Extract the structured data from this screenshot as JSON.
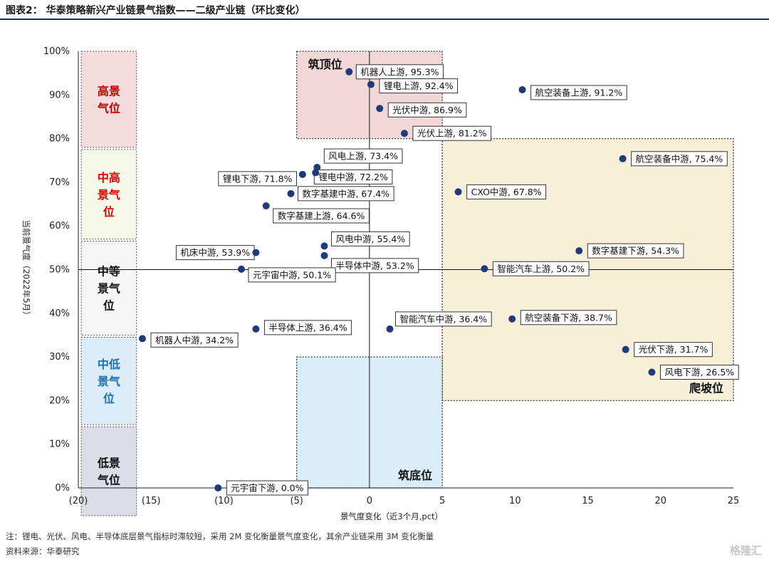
{
  "page": {
    "title": "图表2： 华泰策略新兴产业链景气指数——二级产业链（环比变化）",
    "note": "注：锂电、光伏、风电、半导体底层景气指标时滞较短，采用 2M 变化衡量景气度变化，其余产业链采用 3M 变化衡量",
    "source": "资料来源：华泰研究",
    "watermark": "格隆汇"
  },
  "chart_data": {
    "type": "scatter",
    "xlabel": "景气度变化（近3个月,pct）",
    "ylabel": "当前景气度（2022年5月）",
    "xlim": [
      -20,
      25
    ],
    "ylim": [
      0,
      100
    ],
    "x_ticks": [
      -20,
      -15,
      -10,
      -5,
      0,
      5,
      10,
      15,
      20,
      25
    ],
    "x_tick_labels": [
      "(20)",
      "(15)",
      "(10)",
      "(5)",
      "0",
      "5",
      "10",
      "15",
      "20",
      "25"
    ],
    "y_ticks": [
      0,
      10,
      20,
      30,
      40,
      50,
      60,
      70,
      80,
      90,
      100
    ],
    "y_tick_labels": [
      "0%",
      "10%",
      "20%",
      "30%",
      "40%",
      "50%",
      "60%",
      "70%",
      "80%",
      "90%",
      "100%"
    ],
    "reference_lines": {
      "x": 0,
      "y": 50
    },
    "point_color": "#1f3a7a",
    "tiers": [
      {
        "label": "高景气位",
        "range": [
          78,
          100
        ],
        "fill": "#f4dcdc",
        "text_color": "#c00000"
      },
      {
        "label": "中高景气位",
        "range": [
          57,
          77.5
        ],
        "fill": "#f7fae8",
        "text_color": "#e00000"
      },
      {
        "label": "中等景气位",
        "range": [
          35,
          56.5
        ],
        "fill": "#f6f6f6",
        "text_color": "#111111"
      },
      {
        "label": "中低景气位",
        "range": [
          14.5,
          34.5
        ],
        "fill": "#dcecf8",
        "text_color": "#1f6fb5"
      },
      {
        "label": "低景气位",
        "range": [
          -7,
          14
        ],
        "fill": "#dcdde8",
        "text_color": "#111111"
      }
    ],
    "zones": [
      {
        "label": "筑顶位",
        "x": [
          -5,
          5
        ],
        "y": [
          80,
          100
        ],
        "fill": "#f2d7d7"
      },
      {
        "label": "爬坡位",
        "x": [
          5,
          25
        ],
        "y": [
          20,
          80
        ],
        "fill": "#f7efd8"
      },
      {
        "label": "筑底位",
        "x": [
          -5,
          5
        ],
        "y": [
          0,
          30
        ],
        "fill": "#d9eef8"
      }
    ],
    "points": [
      {
        "name": "机器人上游",
        "x": -1.4,
        "y": 95.3,
        "label": "机器人上游, 95.3%"
      },
      {
        "name": "锂电上游",
        "x": 0.1,
        "y": 92.4,
        "label": "锂电上游, 92.4%"
      },
      {
        "name": "航空装备上游",
        "x": 10.5,
        "y": 91.2,
        "label": "航空装备上游, 91.2%"
      },
      {
        "name": "光伏中游",
        "x": 0.7,
        "y": 86.9,
        "label": "光伏中游, 86.9%"
      },
      {
        "name": "光伏上游",
        "x": 2.4,
        "y": 81.2,
        "label": "光伏上游, 81.2%"
      },
      {
        "name": "航空装备中游",
        "x": 17.4,
        "y": 75.4,
        "label": "航空装备中游, 75.4%"
      },
      {
        "name": "风电上游",
        "x": -3.6,
        "y": 73.4,
        "label": "风电上游, 73.4%"
      },
      {
        "name": "锂电中游",
        "x": -3.7,
        "y": 72.2,
        "label": "锂电中游, 72.2%"
      },
      {
        "name": "锂电下游",
        "x": -4.6,
        "y": 71.8,
        "label": "锂电下游, 71.8%"
      },
      {
        "name": "CXO中游",
        "x": 6.1,
        "y": 67.8,
        "label": "CXO中游, 67.8%"
      },
      {
        "name": "数字基建中游",
        "x": -5.4,
        "y": 67.4,
        "label": "数字基建中游, 67.4%"
      },
      {
        "name": "数字基建上游",
        "x": -7.1,
        "y": 64.6,
        "label": "数字基建上游, 64.6%"
      },
      {
        "name": "风电中游",
        "x": -3.1,
        "y": 55.4,
        "label": "风电中游, 55.4%"
      },
      {
        "name": "数字基建下游",
        "x": 14.4,
        "y": 54.3,
        "label": "数字基建下游, 54.3%"
      },
      {
        "name": "机床中游",
        "x": -7.8,
        "y": 53.9,
        "label": "机床中游, 53.9%"
      },
      {
        "name": "半导体中游",
        "x": -3.1,
        "y": 53.2,
        "label": "半导体中游, 53.2%"
      },
      {
        "name": "智能汽车上游",
        "x": 7.9,
        "y": 50.2,
        "label": "智能汽车上游, 50.2%"
      },
      {
        "name": "元宇宙中游",
        "x": -8.8,
        "y": 50.1,
        "label": "元宇宙中游, 50.1%"
      },
      {
        "name": "航空装备下游",
        "x": 9.8,
        "y": 38.7,
        "label": "航空装备下游, 38.7%"
      },
      {
        "name": "智能汽车中游",
        "x": 1.4,
        "y": 36.4,
        "label": "智能汽车中游, 36.4%"
      },
      {
        "name": "半导体上游",
        "x": -7.8,
        "y": 36.4,
        "label": "半导体上游, 36.4%"
      },
      {
        "name": "机器人中游",
        "x": -15.6,
        "y": 34.2,
        "label": "机器人中游, 34.2%"
      },
      {
        "name": "光伏下游",
        "x": 17.6,
        "y": 31.7,
        "label": "光伏下游, 31.7%"
      },
      {
        "name": "风电下游",
        "x": 19.4,
        "y": 26.5,
        "label": "风电下游, 26.5%"
      },
      {
        "name": "元宇宙下游",
        "x": -10.4,
        "y": 0.0,
        "label": "元宇宙下游, 0.0%"
      }
    ]
  }
}
